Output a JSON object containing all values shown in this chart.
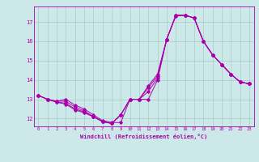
{
  "xlabel": "Windchill (Refroidissement éolien,°C)",
  "background_color": "#cce8e8",
  "line_color": "#aa00aa",
  "grid_color": "#aacccc",
  "xlim": [
    -0.5,
    23.5
  ],
  "ylim": [
    11.6,
    17.8
  ],
  "yticks": [
    12,
    13,
    14,
    15,
    16,
    17
  ],
  "xticks": [
    0,
    1,
    2,
    3,
    4,
    5,
    6,
    7,
    8,
    9,
    10,
    11,
    12,
    13,
    14,
    15,
    16,
    17,
    18,
    19,
    20,
    21,
    22,
    23
  ],
  "series": [
    [
      13.2,
      13.0,
      12.9,
      13.0,
      12.7,
      12.5,
      12.2,
      11.9,
      11.8,
      11.8,
      13.0,
      13.0,
      13.0,
      14.0,
      16.1,
      17.3,
      17.35,
      17.2,
      16.0,
      15.3,
      14.8,
      14.3,
      13.9,
      13.8
    ],
    [
      13.2,
      13.0,
      12.9,
      12.9,
      12.6,
      12.4,
      12.1,
      11.85,
      11.75,
      12.2,
      13.0,
      13.0,
      13.4,
      14.1,
      16.1,
      17.35,
      17.35,
      17.2,
      16.0,
      15.3,
      14.8,
      14.3,
      13.9,
      13.8
    ],
    [
      13.2,
      13.0,
      12.85,
      12.8,
      12.5,
      12.35,
      12.1,
      11.85,
      11.75,
      12.2,
      13.0,
      13.0,
      13.6,
      14.2,
      16.1,
      17.35,
      17.35,
      17.2,
      16.0,
      15.3,
      14.8,
      14.3,
      13.9,
      13.8
    ],
    [
      13.2,
      13.0,
      12.85,
      12.75,
      12.45,
      12.3,
      12.1,
      11.85,
      11.75,
      12.2,
      13.0,
      13.0,
      13.7,
      14.3,
      16.1,
      17.35,
      17.35,
      17.2,
      16.0,
      15.3,
      14.8,
      14.3,
      13.9,
      13.8
    ]
  ]
}
